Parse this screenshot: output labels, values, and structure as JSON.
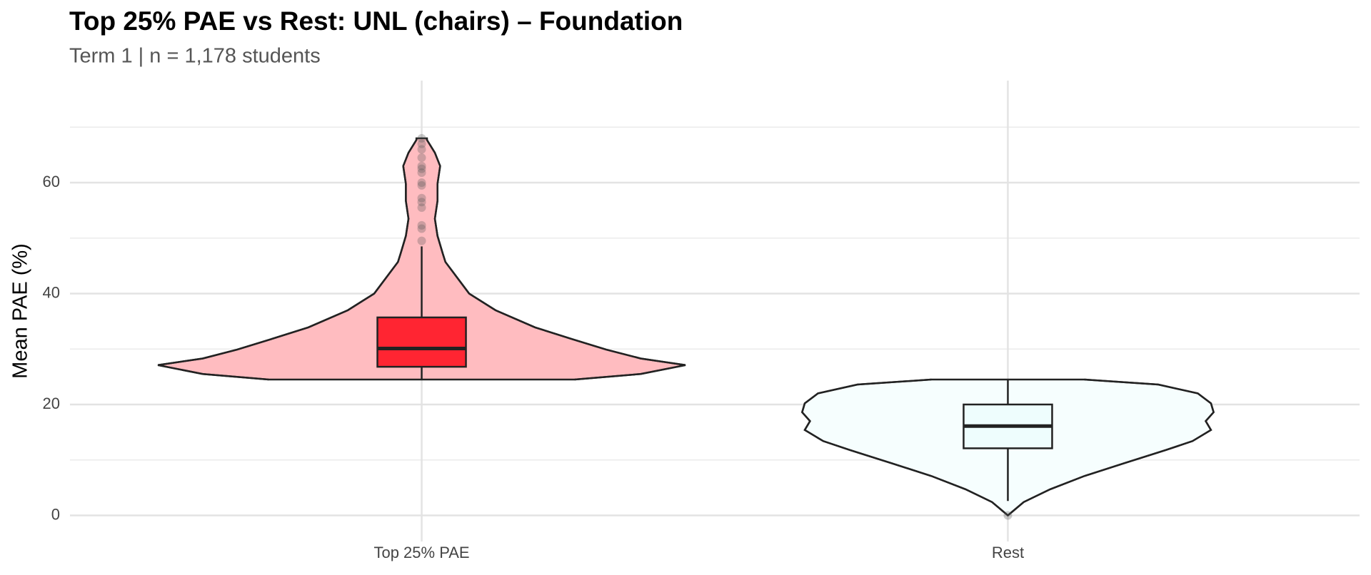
{
  "chart_data": {
    "type": "violin",
    "title": "Top 25% PAE vs Rest: UNL (chairs) – Foundation",
    "subtitle": "Term 1 | n = 1,178 students",
    "y_label": "Mean PAE (%)",
    "categories": [
      "Top 25% PAE",
      "Rest"
    ],
    "ylim": [
      -4.7,
      78.4
    ],
    "yticks": [
      0,
      20,
      40,
      60
    ],
    "minor_yticks": [
      10,
      30,
      50,
      70
    ],
    "grid": true,
    "groups": [
      {
        "violin_color": "#ffbcc0",
        "box_color": "#ff2532",
        "box": {
          "whisker_low": 24.6,
          "q1": 26.8,
          "median": 30.1,
          "q3": 35.7,
          "whisker_high": 48.5
        },
        "outliers": [
          49.5,
          51.7,
          52.3,
          55.5,
          56.5,
          57.2,
          59.5,
          60,
          61.8,
          62.5,
          63,
          64.5,
          66,
          67,
          68
        ],
        "violin": {
          "y": [
            24.5,
            25.5,
            27.1,
            28.3,
            29.9,
            31.8,
            33.9,
            37,
            40,
            45.7,
            47.2,
            50.4,
            53.5,
            56.7,
            59.8,
            63,
            65.4,
            67.7,
            68
          ],
          "density": [
            0.58,
            0.83,
            1,
            0.83,
            0.7,
            0.57,
            0.43,
            0.28,
            0.18,
            0.09,
            0.08,
            0.06,
            0.05,
            0.06,
            0.06,
            0.07,
            0.05,
            0.02,
            0.02
          ]
        }
      },
      {
        "violin_color": "#f6fefe",
        "box_color": "#eefdfd",
        "box": {
          "whisker_low": 2.6,
          "q1": 12.1,
          "median": 16.1,
          "q3": 20,
          "whisker_high": 24.5
        },
        "outliers": [
          0
        ],
        "violin": {
          "y": [
            0,
            0.8,
            2.4,
            4.7,
            7.1,
            9.4,
            11.8,
            13.4,
            15.4,
            17,
            18.6,
            20.2,
            22,
            23.6,
            24.5
          ],
          "density": [
            0,
            0.02,
            0.06,
            0.16,
            0.29,
            0.44,
            0.6,
            0.7,
            0.77,
            0.75,
            0.78,
            0.77,
            0.72,
            0.57,
            0.29
          ]
        }
      }
    ]
  }
}
